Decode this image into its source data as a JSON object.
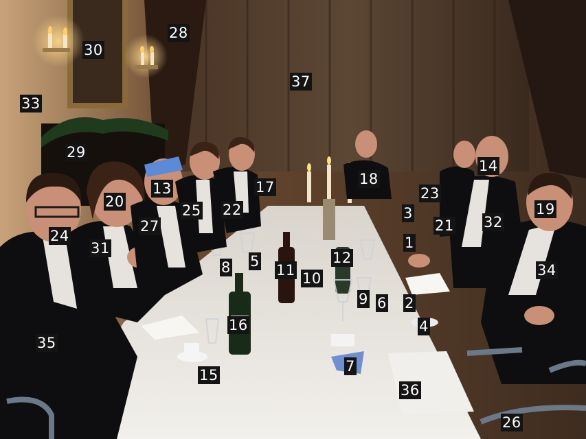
{
  "photo": {
    "labels": [
      {
        "id": "l1",
        "text": "1"
      },
      {
        "id": "l2",
        "text": "2"
      },
      {
        "id": "l3",
        "text": "3"
      },
      {
        "id": "l4",
        "text": "4"
      },
      {
        "id": "l5",
        "text": "5"
      },
      {
        "id": "l6",
        "text": "6"
      },
      {
        "id": "l7",
        "text": "7"
      },
      {
        "id": "l8",
        "text": "8"
      },
      {
        "id": "l9",
        "text": "9"
      },
      {
        "id": "l10",
        "text": "10"
      },
      {
        "id": "l11",
        "text": "11"
      },
      {
        "id": "l12",
        "text": "12"
      },
      {
        "id": "l13",
        "text": "13"
      },
      {
        "id": "l14",
        "text": "14"
      },
      {
        "id": "l15",
        "text": "15"
      },
      {
        "id": "l16",
        "text": "16"
      },
      {
        "id": "l17",
        "text": "17"
      },
      {
        "id": "l18",
        "text": "18"
      },
      {
        "id": "l19",
        "text": "19"
      },
      {
        "id": "l20",
        "text": "20"
      },
      {
        "id": "l21",
        "text": "21"
      },
      {
        "id": "l22",
        "text": "22"
      },
      {
        "id": "l23",
        "text": "23"
      },
      {
        "id": "l24",
        "text": "24"
      },
      {
        "id": "l25",
        "text": "25"
      },
      {
        "id": "l26",
        "text": "26"
      },
      {
        "id": "l27",
        "text": "27"
      },
      {
        "id": "l28",
        "text": "28"
      },
      {
        "id": "l29",
        "text": "29"
      },
      {
        "id": "l30",
        "text": "30"
      },
      {
        "id": "l31",
        "text": "31"
      },
      {
        "id": "l32",
        "text": "32"
      },
      {
        "id": "l33",
        "text": "33"
      },
      {
        "id": "l34",
        "text": "34"
      },
      {
        "id": "l35",
        "text": "35"
      },
      {
        "id": "l36",
        "text": "36"
      },
      {
        "id": "l37",
        "text": "37"
      }
    ],
    "colors": {
      "wall": "#5a3b24",
      "curtain": "#3d2a1c",
      "tablecloth": "#e8e6e2",
      "suit": "#0e0d0f",
      "shirt": "#e6e3de",
      "skin": "#c98f77",
      "candle": "#ffe9a8",
      "label_bg": "#141414",
      "label_fg": "#ffffff"
    }
  }
}
